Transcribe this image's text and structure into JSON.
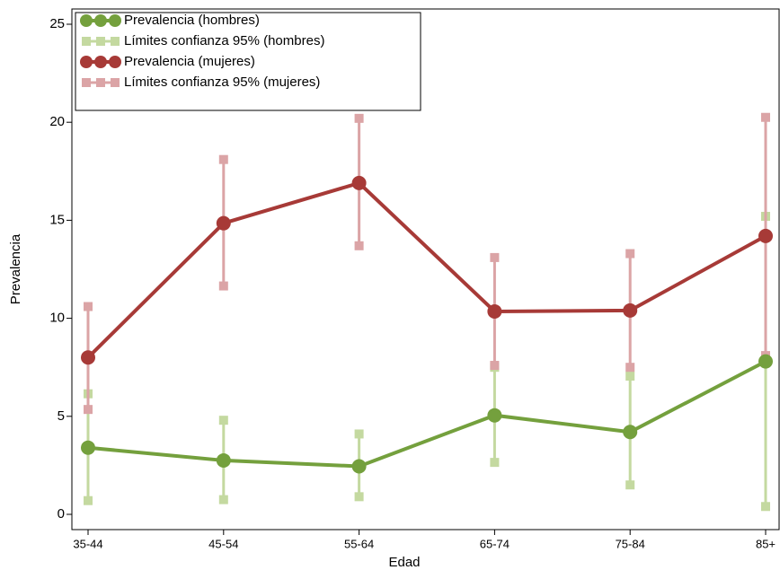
{
  "chart_data": {
    "type": "line",
    "x_label": "Edad",
    "y_label": "Prevalencia",
    "categories": [
      "35-44",
      "45-54",
      "55-64",
      "65-74",
      "75-84",
      "85+"
    ],
    "ylim": [
      0,
      25
    ],
    "yticks": [
      0,
      5,
      10,
      15,
      20,
      25
    ],
    "series": [
      {
        "name": "Prevalencia (hombres)",
        "color": "#74a03d",
        "values": [
          3.4,
          2.75,
          2.45,
          5.05,
          4.2,
          7.8
        ]
      },
      {
        "name": "Límites confianza 95% (hombres)",
        "color": "#c4d9a0",
        "lower": [
          0.7,
          0.75,
          0.9,
          2.65,
          1.5,
          0.4
        ],
        "upper": [
          6.15,
          4.8,
          4.1,
          7.5,
          7.05,
          15.2
        ]
      },
      {
        "name": "Prevalencia (mujeres)",
        "color": "#a73a37",
        "values": [
          8.0,
          14.85,
          16.9,
          10.35,
          10.4,
          14.2
        ]
      },
      {
        "name": "Límites confianza 95% (mujeres)",
        "color": "#dba4a6",
        "lower": [
          5.35,
          11.65,
          13.7,
          7.6,
          7.5,
          8.1
        ],
        "upper": [
          10.6,
          18.1,
          20.2,
          13.1,
          13.3,
          20.25
        ]
      }
    ]
  }
}
